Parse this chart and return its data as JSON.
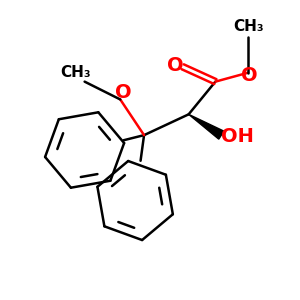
{
  "background": "#ffffff",
  "bond_color": "#000000",
  "heteroatom_color": "#ff0000",
  "bond_width": 1.8,
  "font_size_atoms": 14,
  "font_size_me": 11,
  "figsize": [
    3.0,
    3.0
  ],
  "dpi": 100,
  "xlim": [
    0,
    10
  ],
  "ylim": [
    0,
    10
  ],
  "C3": [
    4.8,
    5.5
  ],
  "C2": [
    6.3,
    6.2
  ],
  "Cc": [
    7.2,
    7.3
  ],
  "CO_double": [
    6.1,
    7.8
  ],
  "COM": [
    8.3,
    7.6
  ],
  "CMe_ester": [
    8.3,
    8.8
  ],
  "OH": [
    7.4,
    5.5
  ],
  "MO": [
    4.0,
    6.7
  ],
  "MOMe": [
    2.8,
    7.3
  ],
  "Ph1c": [
    2.8,
    5.0
  ],
  "Ph1r": 1.35,
  "Ph1angle": 10,
  "Ph2c": [
    4.5,
    3.3
  ],
  "Ph2r": 1.35,
  "Ph2angle": 340
}
